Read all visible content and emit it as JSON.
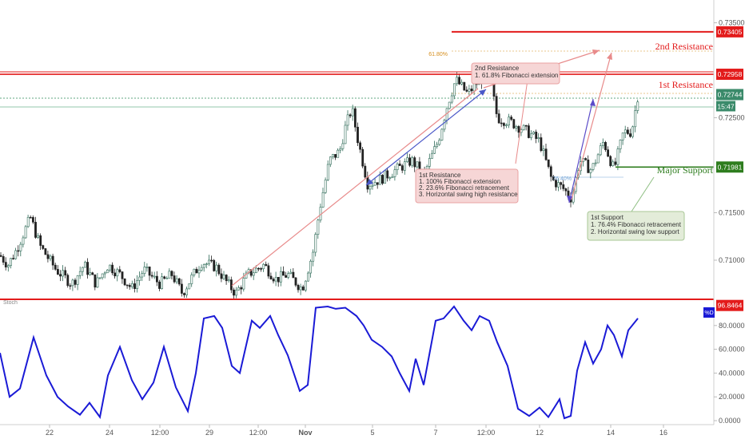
{
  "chart_data": [
    {
      "type": "candlestick",
      "panel": "price",
      "y_ticks": [
        "0.73500",
        "0.72500",
        "0.71500",
        "0.71000"
      ],
      "ylim": [
        0.7063,
        0.7374
      ],
      "levels": [
        {
          "name": "2nd Resistance",
          "value": 0.73405,
          "label": "0.73405",
          "color": "#e31b1b"
        },
        {
          "name": "1st Resistance",
          "value": 0.72958,
          "label": "0.72958",
          "color": "#e31b1b"
        },
        {
          "name": "Major Support",
          "value": 0.71981,
          "label": "0.71981",
          "color": "#2e7d1e"
        }
      ],
      "current_price": {
        "value": 0.72744,
        "label": "0.72744",
        "countdown": "15:47",
        "color": "#3a8a6a"
      },
      "fib_labels": [
        "61.80%",
        "76.40%"
      ],
      "annotations": [
        {
          "id": "second_resistance_note",
          "lines": [
            "2nd Resistance",
            "1. 61.8% Fibonacci extension"
          ]
        },
        {
          "id": "first_resistance_note",
          "lines": [
            "1st Resistance",
            "1. 100% Fibonacci extension",
            "2. 23.6% Fibonacci retracement",
            "3. Horizontal swing high resistance"
          ]
        },
        {
          "id": "first_support_note",
          "lines": [
            "1st Support",
            "1. 76.4% Fibonacci retracement",
            "2. Horizontal swing low support"
          ]
        }
      ],
      "path": [
        [
          0,
          0.7105
        ],
        [
          10,
          0.7095
        ],
        [
          20,
          0.711
        ],
        [
          38,
          0.7145
        ],
        [
          50,
          0.7115
        ],
        [
          70,
          0.709
        ],
        [
          90,
          0.7075
        ],
        [
          105,
          0.7095
        ],
        [
          120,
          0.7075
        ],
        [
          135,
          0.7095
        ],
        [
          150,
          0.7085
        ],
        [
          165,
          0.707
        ],
        [
          180,
          0.709
        ],
        [
          200,
          0.7075
        ],
        [
          215,
          0.7085
        ],
        [
          228,
          0.7065
        ],
        [
          240,
          0.7082
        ],
        [
          252,
          0.7098
        ],
        [
          270,
          0.7093
        ],
        [
          285,
          0.7075
        ],
        [
          295,
          0.7065
        ],
        [
          310,
          0.7085
        ],
        [
          330,
          0.7095
        ],
        [
          345,
          0.708
        ],
        [
          360,
          0.7085
        ],
        [
          378,
          0.707
        ],
        [
          392,
          0.711
        ],
        [
          400,
          0.7155
        ],
        [
          412,
          0.7205
        ],
        [
          425,
          0.7215
        ],
        [
          432,
          0.724
        ],
        [
          440,
          0.726
        ],
        [
          448,
          0.7225
        ],
        [
          460,
          0.718
        ],
        [
          475,
          0.7185
        ],
        [
          495,
          0.7195
        ],
        [
          515,
          0.7205
        ],
        [
          530,
          0.719
        ],
        [
          548,
          0.7225
        ],
        [
          560,
          0.7265
        ],
        [
          570,
          0.729
        ],
        [
          585,
          0.7275
        ],
        [
          600,
          0.729
        ],
        [
          612,
          0.7295
        ],
        [
          622,
          0.725
        ],
        [
          640,
          0.7245
        ],
        [
          660,
          0.7235
        ],
        [
          675,
          0.7225
        ],
        [
          690,
          0.7185
        ],
        [
          705,
          0.7175
        ],
        [
          715,
          0.7165
        ],
        [
          725,
          0.7205
        ],
        [
          740,
          0.7195
        ],
        [
          755,
          0.7225
        ],
        [
          768,
          0.7195
        ],
        [
          780,
          0.7235
        ],
        [
          790,
          0.7235
        ],
        [
          798,
          0.7274
        ]
      ]
    },
    {
      "type": "line",
      "panel": "oscillator",
      "name": "Stoch",
      "series_label": "%D",
      "y_ticks": [
        "80.0000",
        "60.0000",
        "40.0000",
        "20.0000",
        "0.0000"
      ],
      "ylim": [
        -2,
        100
      ],
      "color": "#1a1ad6",
      "max_label": "96.8464",
      "values": [
        [
          0,
          57
        ],
        [
          12,
          20
        ],
        [
          25,
          27
        ],
        [
          42,
          70
        ],
        [
          58,
          38
        ],
        [
          72,
          20
        ],
        [
          85,
          12
        ],
        [
          100,
          5
        ],
        [
          112,
          15
        ],
        [
          125,
          3
        ],
        [
          135,
          38
        ],
        [
          150,
          62
        ],
        [
          165,
          34
        ],
        [
          178,
          18
        ],
        [
          192,
          32
        ],
        [
          205,
          62
        ],
        [
          220,
          28
        ],
        [
          235,
          8
        ],
        [
          245,
          40
        ],
        [
          255,
          86
        ],
        [
          268,
          88
        ],
        [
          278,
          78
        ],
        [
          290,
          46
        ],
        [
          300,
          40
        ],
        [
          315,
          84
        ],
        [
          325,
          78
        ],
        [
          338,
          88
        ],
        [
          348,
          72
        ],
        [
          360,
          55
        ],
        [
          375,
          25
        ],
        [
          385,
          30
        ],
        [
          395,
          95
        ],
        [
          410,
          96
        ],
        [
          420,
          94
        ],
        [
          432,
          95
        ],
        [
          446,
          88
        ],
        [
          455,
          80
        ],
        [
          465,
          68
        ],
        [
          478,
          62
        ],
        [
          490,
          54
        ],
        [
          500,
          40
        ],
        [
          512,
          25
        ],
        [
          520,
          52
        ],
        [
          530,
          30
        ],
        [
          545,
          84
        ],
        [
          555,
          86
        ],
        [
          568,
          96
        ],
        [
          580,
          84
        ],
        [
          590,
          76
        ],
        [
          600,
          88
        ],
        [
          612,
          84
        ],
        [
          622,
          66
        ],
        [
          635,
          46
        ],
        [
          648,
          10
        ],
        [
          662,
          4
        ],
        [
          675,
          11
        ],
        [
          686,
          3
        ],
        [
          700,
          18
        ],
        [
          706,
          2
        ],
        [
          714,
          4
        ],
        [
          722,
          42
        ],
        [
          732,
          66
        ],
        [
          742,
          48
        ],
        [
          752,
          60
        ],
        [
          760,
          80
        ],
        [
          768,
          72
        ],
        [
          778,
          54
        ],
        [
          786,
          76
        ],
        [
          798,
          86
        ]
      ]
    }
  ],
  "price_axis": {
    "title": ""
  },
  "x_ticks": [
    {
      "label": "22",
      "x": 62
    },
    {
      "label": "24",
      "x": 137
    },
    {
      "label": "12:00",
      "x": 200
    },
    {
      "label": "29",
      "x": 262
    },
    {
      "label": "12:00",
      "x": 323
    },
    {
      "label": "Nov",
      "x": 382
    },
    {
      "label": "5",
      "x": 466
    },
    {
      "label": "7",
      "x": 545
    },
    {
      "label": "12:00",
      "x": 608
    },
    {
      "label": "12",
      "x": 675
    },
    {
      "label": "14",
      "x": 764
    },
    {
      "label": "16",
      "x": 830
    }
  ],
  "colors": {
    "up": "#2f6b58",
    "down": "#222222",
    "resistance": "#e31b1b",
    "support": "#2e7d1e",
    "stoch": "#1a1ad6"
  }
}
